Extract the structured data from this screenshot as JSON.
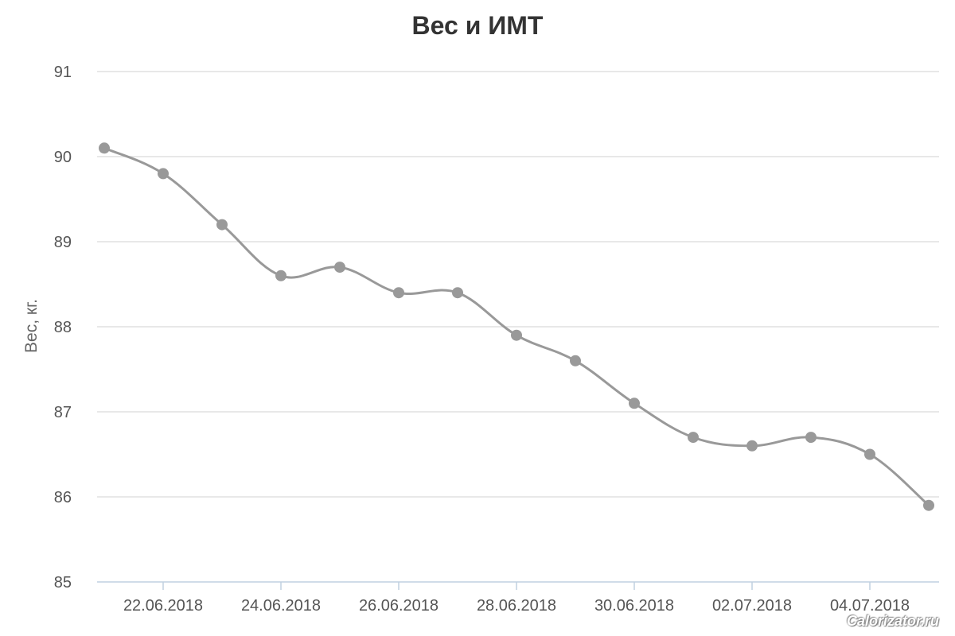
{
  "chart_data": {
    "type": "line",
    "title": "Вес и ИМТ",
    "ylabel": "Вес, кг.",
    "xlabel": "",
    "ylim": [
      85,
      91
    ],
    "yticks": [
      85,
      86,
      87,
      88,
      89,
      90,
      91
    ],
    "x": [
      "21.06.2018",
      "22.06.2018",
      "23.06.2018",
      "24.06.2018",
      "25.06.2018",
      "26.06.2018",
      "27.06.2018",
      "28.06.2018",
      "29.06.2018",
      "30.06.2018",
      "01.07.2018",
      "02.07.2018",
      "03.07.2018",
      "04.07.2018",
      "05.07.2018"
    ],
    "xtick_labels": [
      "22.06.2018",
      "24.06.2018",
      "26.06.2018",
      "28.06.2018",
      "30.06.2018",
      "02.07.2018",
      "04.07.2018"
    ],
    "series": [
      {
        "values": [
          90.1,
          89.8,
          89.2,
          88.6,
          88.7,
          88.4,
          88.4,
          87.9,
          87.6,
          87.1,
          86.7,
          86.6,
          86.7,
          86.5,
          85.9
        ]
      }
    ],
    "grid": true,
    "line_color": "#999999",
    "grid_color": "#e0e0e0",
    "axis_color": "#c0d0e0"
  },
  "watermark": "Calorizator.ru"
}
